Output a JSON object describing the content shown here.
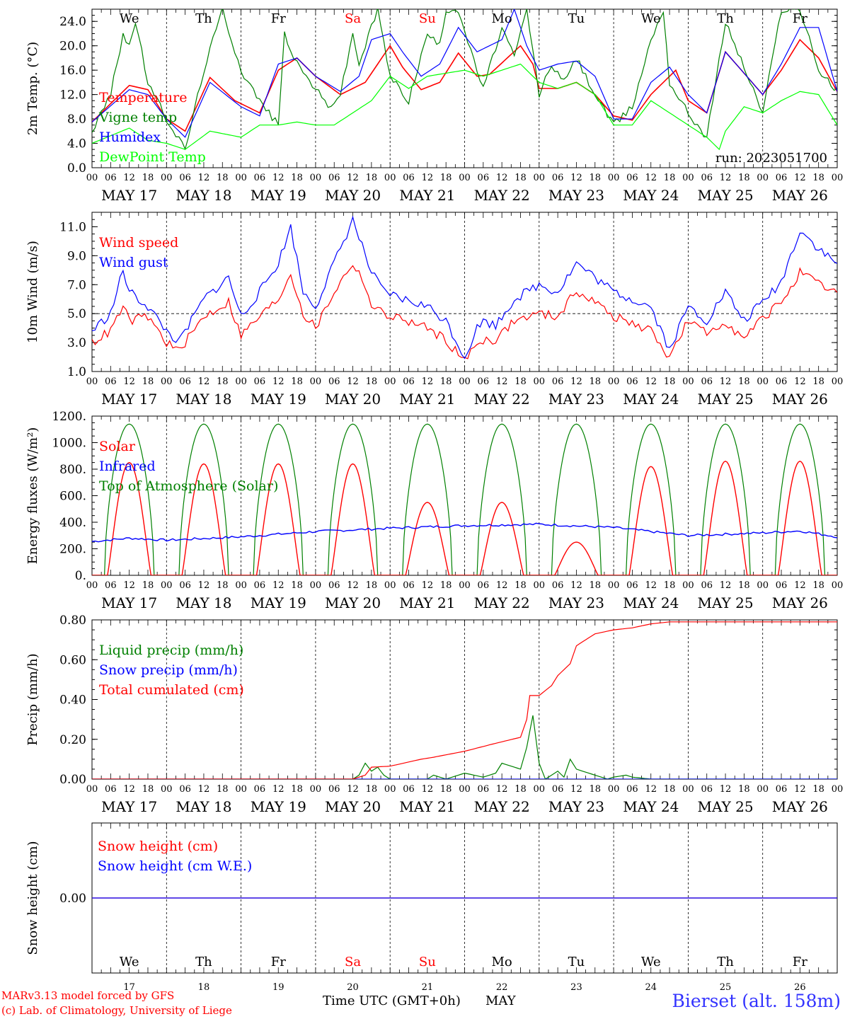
{
  "days": [
    "17",
    "18",
    "19",
    "20",
    "21",
    "22",
    "23",
    "24",
    "25",
    "26"
  ],
  "day_names": [
    "We",
    "Th",
    "Fr",
    "Sa",
    "Su",
    "Mo",
    "Tu",
    "We",
    "Th",
    "Fr"
  ],
  "day_name_colors": [
    "#000000",
    "#000000",
    "#000000",
    "#ff0000",
    "#ff0000",
    "#000000",
    "#000000",
    "#000000",
    "#000000",
    "#000000"
  ],
  "date_labels": [
    "MAY 17",
    "MAY 18",
    "MAY 19",
    "MAY 20",
    "MAY 21",
    "MAY 22",
    "MAY 23",
    "MAY 24",
    "MAY 25",
    "MAY 26"
  ],
  "hour_ticks": [
    "00",
    "06",
    "12",
    "18"
  ],
  "final_hour": "00",
  "footer": {
    "model": "MARv3.13 model forced by GFS",
    "lab": "(c) Lab. of Climatology, University of Liege",
    "xlabel": "Time UTC (GMT+0h)",
    "month": "MAY",
    "station": "Bierset (alt. 158m)"
  },
  "chart_data": [
    {
      "id": "temp",
      "type": "line",
      "ylabel": "2m Temp. (°C)",
      "ylim": [
        0,
        26
      ],
      "yticks": [
        "0.0",
        "4.0",
        "8.0",
        "12.0",
        "16.0",
        "20.0",
        "24.0"
      ],
      "x_unit": "hours since MAY 17 00 UTC",
      "annotation": "run: 2023051700",
      "legend": [
        "Temperature",
        "Vigne temp",
        "Humidex",
        "DewPoint Temp"
      ],
      "series": [
        {
          "name": "Temperature",
          "color": "#ff0000",
          "x": [
            0,
            12,
            18,
            24,
            30,
            38,
            46,
            54,
            60,
            66,
            72,
            80,
            88,
            96,
            100,
            106,
            112,
            118,
            124,
            128,
            138,
            142,
            144,
            150,
            156,
            162,
            168,
            174,
            180,
            188,
            192,
            198,
            204,
            216,
            222,
            228,
            234,
            240
          ],
          "y": [
            7.5,
            13.5,
            12.8,
            8,
            6,
            14.8,
            11,
            9,
            16,
            18,
            15,
            12,
            14,
            20,
            16.5,
            12.8,
            14,
            18.8,
            15,
            15.3,
            20,
            17,
            13,
            13,
            14,
            12,
            8.5,
            7.8,
            12,
            16,
            11,
            9,
            19,
            12,
            16,
            21,
            18,
            12.5
          ]
        },
        {
          "name": "Vigne temp",
          "color": "#008000",
          "x": [
            0,
            6,
            10,
            12,
            14,
            18,
            24,
            30,
            36,
            42,
            48,
            54,
            60,
            62,
            66,
            72,
            76,
            80,
            84,
            86,
            92,
            96,
            102,
            108,
            112,
            114,
            118,
            122,
            126,
            132,
            136,
            140,
            144,
            148,
            152,
            156,
            162,
            168,
            174,
            180,
            184,
            186,
            192,
            198,
            204,
            216,
            222,
            228,
            234,
            240
          ],
          "y": [
            6,
            12,
            22,
            20,
            24,
            14,
            8,
            3,
            16,
            26,
            16,
            11,
            7,
            22,
            17,
            13,
            10,
            12,
            22,
            17,
            26,
            15,
            11,
            22,
            20,
            26,
            26,
            19,
            13,
            23,
            18,
            26,
            12,
            17,
            14,
            18,
            12,
            7,
            10,
            21,
            26,
            14,
            9,
            5,
            24,
            9,
            26,
            26,
            16,
            12.5
          ]
        },
        {
          "name": "Humidex",
          "color": "#0000ff",
          "x": [
            0,
            12,
            18,
            24,
            30,
            38,
            48,
            54,
            60,
            66,
            72,
            80,
            86,
            90,
            96,
            100,
            106,
            112,
            118,
            124,
            132,
            136,
            140,
            144,
            150,
            156,
            162,
            168,
            174,
            180,
            186,
            192,
            198,
            204,
            216,
            222,
            228,
            234,
            240
          ],
          "y": [
            7.5,
            12.8,
            12,
            8,
            5,
            14,
            10,
            8.5,
            17,
            18,
            15,
            12.5,
            15,
            21,
            22,
            19,
            15,
            17,
            23,
            19,
            21,
            26,
            20,
            16,
            17,
            17.5,
            15,
            8,
            8,
            14,
            16.5,
            12,
            9,
            19,
            12,
            17,
            23,
            23,
            12.5
          ]
        },
        {
          "name": "DewPoint Temp",
          "color": "#00ff00",
          "x": [
            0,
            12,
            18,
            24,
            30,
            38,
            48,
            54,
            60,
            66,
            72,
            78,
            84,
            90,
            96,
            102,
            108,
            114,
            120,
            126,
            132,
            138,
            144,
            150,
            156,
            162,
            168,
            174,
            180,
            186,
            192,
            198,
            202,
            204,
            210,
            216,
            222,
            228,
            234,
            240
          ],
          "y": [
            4,
            6.5,
            4.5,
            4,
            3,
            6,
            5,
            7,
            7,
            7.5,
            7,
            7,
            9,
            11,
            15,
            13,
            15,
            15.5,
            16,
            15,
            16,
            17,
            14,
            13,
            14,
            12,
            7,
            7,
            11,
            9,
            7,
            5,
            3,
            6,
            10,
            9,
            11,
            12.5,
            12,
            7
          ]
        }
      ]
    },
    {
      "id": "wind",
      "type": "line",
      "ylabel": "10m Wind (m/s)",
      "ylim": [
        1,
        12
      ],
      "yticks": [
        "1.0",
        "3.0",
        "5.0",
        "7.0",
        "9.0",
        "11.0"
      ],
      "reference_line": 5,
      "legend": [
        "Wind speed",
        "Wind gust"
      ],
      "series": [
        {
          "name": "Wind speed",
          "color": "#ff0000",
          "x": [
            0,
            6,
            10,
            12,
            18,
            24,
            28,
            36,
            44,
            48,
            54,
            60,
            64,
            68,
            72,
            78,
            84,
            88,
            90,
            94,
            100,
            108,
            114,
            120,
            124,
            126,
            130,
            136,
            144,
            150,
            156,
            162,
            168,
            174,
            180,
            186,
            192,
            198,
            204,
            210,
            216,
            222,
            228,
            234,
            240
          ],
          "y": [
            3,
            3.8,
            5.5,
            4.5,
            4.8,
            3,
            2.4,
            4.8,
            5.8,
            3.5,
            4.8,
            6,
            7.8,
            5,
            4,
            6.5,
            8.5,
            7,
            5.5,
            5,
            4.6,
            4,
            3.2,
            1.7,
            3,
            3.2,
            3.2,
            4.5,
            5,
            4.8,
            6.6,
            5.8,
            4.8,
            4.3,
            3.8,
            2,
            4.5,
            3.6,
            4.5,
            3.2,
            4.7,
            5.8,
            7.8,
            7,
            6.4
          ]
        },
        {
          "name": "Wind gust",
          "color": "#0000ff",
          "x": [
            0,
            6,
            10,
            12,
            18,
            24,
            28,
            36,
            44,
            48,
            54,
            60,
            64,
            68,
            72,
            78,
            84,
            88,
            90,
            94,
            100,
            108,
            114,
            120,
            124,
            126,
            130,
            136,
            144,
            150,
            156,
            162,
            168,
            174,
            180,
            186,
            192,
            198,
            204,
            210,
            216,
            222,
            228,
            234,
            240
          ],
          "y": [
            3.8,
            5,
            8,
            6.5,
            5.5,
            3.8,
            3,
            6,
            7.5,
            4.8,
            6.5,
            8.5,
            11,
            6.5,
            5.5,
            8.5,
            11.5,
            9,
            7.8,
            6.5,
            6,
            5.5,
            4.5,
            2,
            4,
            4.5,
            4.2,
            6,
            7,
            6.5,
            8.5,
            7.5,
            6.5,
            6,
            5.5,
            2.5,
            5.5,
            4.5,
            6.5,
            4.5,
            5.8,
            7.2,
            10.8,
            9.5,
            8.4
          ]
        }
      ]
    },
    {
      "id": "energy",
      "type": "line",
      "ylabel": "Energy fluxes (W/m²)",
      "ylim": [
        0,
        1200
      ],
      "yticks": [
        "0.",
        "200.",
        "400.",
        "600.",
        "800.",
        "1000.",
        "1200."
      ],
      "legend": [
        "Solar",
        "Infrared",
        "Top of Atmosphere (Solar)"
      ],
      "toa_peak": 1140,
      "solar_peaks": [
        850,
        840,
        840,
        840,
        550,
        550,
        250,
        820,
        860,
        860
      ],
      "series": [
        {
          "name": "Solar",
          "color": "#ff0000"
        },
        {
          "name": "Infrared",
          "color": "#0000ff",
          "x": [
            0,
            12,
            24,
            48,
            72,
            96,
            120,
            144,
            168,
            192,
            216,
            228,
            240
          ],
          "y": [
            255,
            280,
            265,
            290,
            330,
            355,
            375,
            385,
            360,
            300,
            320,
            335,
            290
          ]
        },
        {
          "name": "Top of Atmosphere (Solar)",
          "color": "#008000"
        }
      ]
    },
    {
      "id": "precip",
      "type": "line",
      "ylabel": "Precip (mm/h)",
      "ylim": [
        0,
        0.8
      ],
      "yticks": [
        "0.00",
        "0.20",
        "0.40",
        "0.60",
        "0.80"
      ],
      "legend": [
        "Liquid precip (mm/h)",
        "Snow precip (mm/h)",
        "Total cumulated (cm)"
      ],
      "series": [
        {
          "name": "Liquid precip (mm/h)",
          "color": "#008000",
          "x": [
            0,
            84,
            86,
            88,
            90,
            92,
            94,
            96,
            108,
            110,
            114,
            120,
            126,
            130,
            132,
            138,
            140,
            142,
            144,
            146,
            148,
            150,
            152,
            154,
            156,
            162,
            166,
            168,
            172,
            174,
            180,
            192,
            240
          ],
          "y": [
            0,
            0,
            0.02,
            0.08,
            0.04,
            0.06,
            0.02,
            0,
            0,
            0.02,
            0,
            0.03,
            0.01,
            0.03,
            0.08,
            0.05,
            0.16,
            0.32,
            0.08,
            0,
            0.02,
            0.04,
            0.01,
            0.1,
            0.05,
            0.02,
            0,
            0.01,
            0.02,
            0.01,
            0,
            0,
            0
          ]
        },
        {
          "name": "Snow precip (mm/h)",
          "color": "#0000ff",
          "x": [
            0,
            240
          ],
          "y": [
            0,
            0
          ]
        },
        {
          "name": "Total cumulated (cm)",
          "color": "#ff0000",
          "x": [
            0,
            84,
            88,
            90,
            96,
            106,
            110,
            120,
            130,
            138,
            140,
            141,
            142,
            144,
            148,
            150,
            154,
            156,
            162,
            168,
            174,
            180,
            186,
            192,
            240
          ],
          "y": [
            0,
            0,
            0.02,
            0.06,
            0.065,
            0.1,
            0.11,
            0.14,
            0.18,
            0.21,
            0.3,
            0.42,
            0.42,
            0.42,
            0.47,
            0.52,
            0.58,
            0.67,
            0.73,
            0.75,
            0.76,
            0.78,
            0.79,
            0.79,
            0.79
          ]
        }
      ]
    },
    {
      "id": "snow",
      "type": "line",
      "ylabel": "Snow height (cm)",
      "ylim": [
        -1,
        1
      ],
      "yticks": [
        "0.00"
      ],
      "legend": [
        "Snow height (cm)",
        "Snow height (cm W.E.)"
      ],
      "series": [
        {
          "name": "Snow height (cm)",
          "color": "#ff0000",
          "x": [
            0,
            240
          ],
          "y": [
            0,
            0
          ]
        },
        {
          "name": "Snow height (cm W.E.)",
          "color": "#0000ff",
          "x": [
            0,
            240
          ],
          "y": [
            0,
            0
          ]
        }
      ]
    }
  ]
}
